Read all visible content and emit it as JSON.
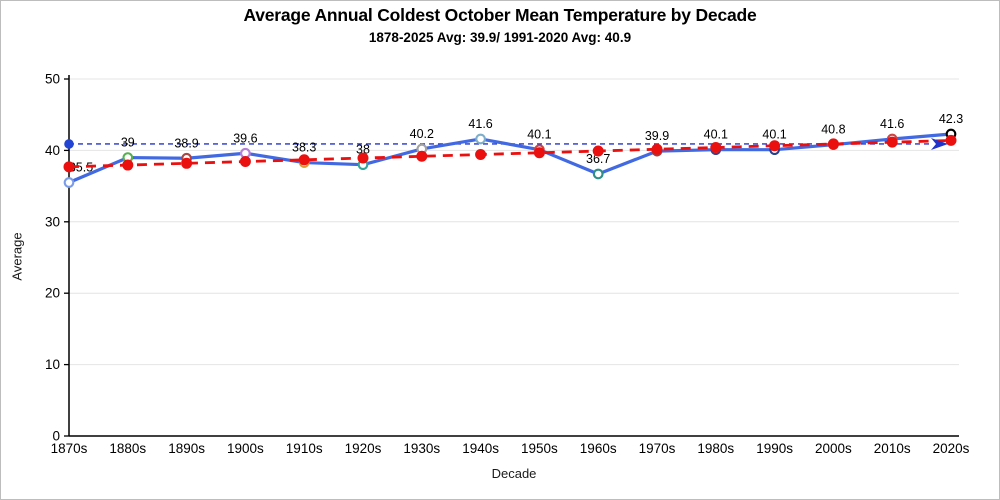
{
  "window": {
    "background": "#ffffff",
    "border_color": "#bdbdbd"
  },
  "chart_data": {
    "type": "line",
    "title": "Average Annual Coldest October Mean Temperature by Decade",
    "subtitle": "1878-2025 Avg: 39.9/ 1991-2020 Avg: 40.9",
    "xlabel": "Decade",
    "ylabel": "Average",
    "ylim": [
      0,
      50
    ],
    "yticks": [
      0,
      10,
      20,
      30,
      40,
      50
    ],
    "grid": "horizontal",
    "legend": "none",
    "categories": [
      "1870s",
      "1880s",
      "1890s",
      "1900s",
      "1910s",
      "1920s",
      "1930s",
      "1940s",
      "1950s",
      "1960s",
      "1970s",
      "1980s",
      "1990s",
      "2000s",
      "2010s",
      "2020s"
    ],
    "series": [
      {
        "name": "decade-average",
        "kind": "line-with-markers",
        "line_color": "#4169e1",
        "values": [
          35.5,
          39,
          38.9,
          39.6,
          38.3,
          38,
          40.2,
          41.6,
          40.1,
          36.7,
          39.9,
          40.1,
          40.1,
          40.8,
          41.6,
          42.3
        ],
        "labels": [
          "35.5",
          "39",
          "38.9",
          "39.6",
          "38.3",
          "38",
          "40.2",
          "41.6",
          "40.1",
          "36.7",
          "39.9",
          "40.1",
          "40.1",
          "40.8",
          "41.6",
          "42.3"
        ],
        "marker_colors": [
          "#7b9ce8",
          "#55b14e",
          "#aa4643",
          "#b77fd6",
          "#db9a33",
          "#33a69b",
          "#a2a2a2",
          "#7faec9",
          "#cc4444",
          "#2e8f87",
          "#9c4141",
          "#33458e",
          "#27408b",
          "#cc4444",
          "#cc4444",
          "#000000"
        ]
      },
      {
        "name": "linear-trend",
        "kind": "trendline-dashed-with-dots",
        "color": "#ea1010",
        "start_value": 37.7,
        "end_value": 41.4
      },
      {
        "name": "normal-1991-2020",
        "kind": "reference-line-dashed-arrow",
        "color": "#2233cc",
        "value": 40.9
      }
    ]
  }
}
